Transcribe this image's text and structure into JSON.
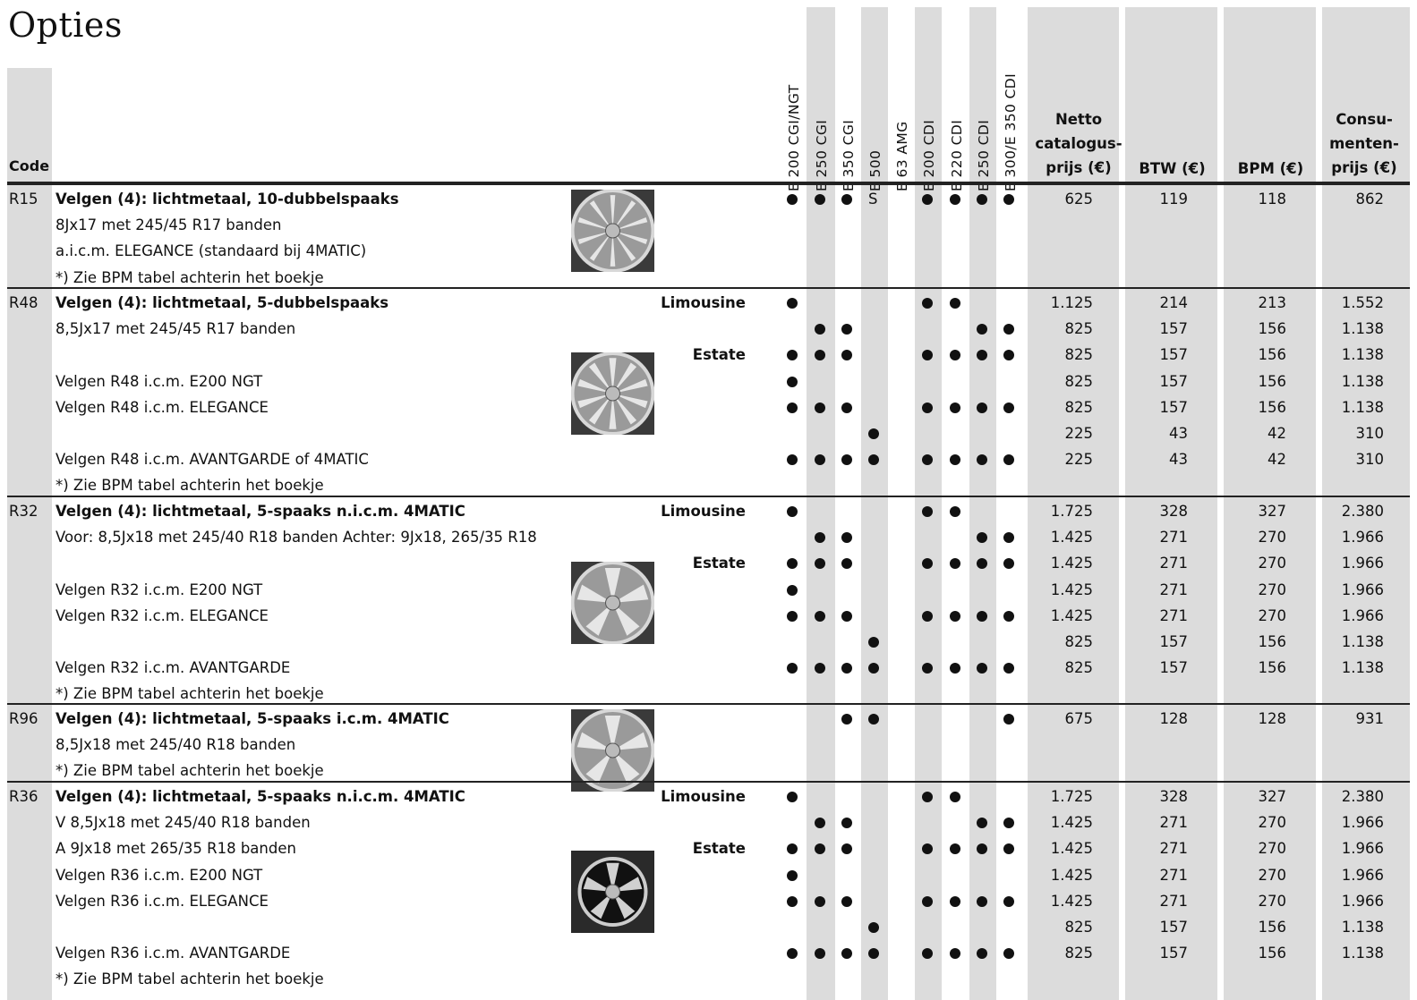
{
  "title": "Opties",
  "header": {
    "code": "Code",
    "models": [
      "E 200 CGI/NGT",
      "E 250 CGI",
      "E 350 CGI",
      "E 500",
      "E 63 AMG",
      "E 200 CDI",
      "E 220 CDI",
      "E 250 CDI",
      "E 300/E 350 CDI"
    ],
    "netto": [
      "Netto",
      "catalogus-",
      "prijs (€)"
    ],
    "btw": "BTW (€)",
    "bpm": "BPM (€)",
    "consumenten": [
      "Consu-",
      "menten-",
      "prijs (€)"
    ]
  },
  "groups": [
    {
      "code": "R15",
      "wheel_style": "10-dubbel-spoke",
      "rows": [
        {
          "text": "Velgen (4): lichtmetaal, 10-dubbelspaaks",
          "bold": true,
          "variant": "",
          "marks": [
            "●",
            "●",
            "●",
            "S",
            "",
            "●",
            "●",
            "●",
            "●"
          ],
          "netto": "625",
          "btw": "119",
          "bpm": "118",
          "cons": "862"
        },
        {
          "text": "8Jx17 met 245/45 R17 banden",
          "bold": false,
          "variant": "",
          "marks": [],
          "netto": "",
          "btw": "",
          "bpm": "",
          "cons": ""
        },
        {
          "text": "a.i.c.m. ELEGANCE (standaard bij 4MATIC)",
          "bold": false,
          "variant": "",
          "marks": [],
          "netto": "",
          "btw": "",
          "bpm": "",
          "cons": ""
        },
        {
          "text": "*) Zie BPM tabel achterin het boekje",
          "bold": false,
          "variant": "",
          "marks": [],
          "netto": "",
          "btw": "",
          "bpm": "",
          "cons": ""
        }
      ]
    },
    {
      "code": "R48",
      "wheel_style": "5-dubbel-spoke",
      "rows": [
        {
          "text": "Velgen (4): lichtmetaal, 5-dubbelspaaks",
          "bold": true,
          "variant": "Limousine",
          "marks": [
            "●",
            "",
            "",
            "",
            "",
            "●",
            "●",
            "",
            ""
          ],
          "netto": "1.125",
          "btw": "214",
          "bpm": "213",
          "cons": "1.552"
        },
        {
          "text": "8,5Jx17 met 245/45 R17 banden",
          "bold": false,
          "variant": "",
          "marks": [
            "",
            "●",
            "●",
            "",
            "",
            "",
            "",
            "●",
            "●"
          ],
          "netto": "825",
          "btw": "157",
          "bpm": "156",
          "cons": "1.138"
        },
        {
          "text": "",
          "bold": false,
          "variant": "Estate",
          "marks": [
            "●",
            "●",
            "●",
            "",
            "",
            "●",
            "●",
            "●",
            "●"
          ],
          "netto": "825",
          "btw": "157",
          "bpm": "156",
          "cons": "1.138"
        },
        {
          "text": "Velgen R48 i.c.m. E200 NGT",
          "bold": false,
          "variant": "",
          "marks": [
            "●",
            "",
            "",
            "",
            "",
            "",
            "",
            "",
            ""
          ],
          "netto": "825",
          "btw": "157",
          "bpm": "156",
          "cons": "1.138"
        },
        {
          "text": "Velgen R48 i.c.m. ELEGANCE",
          "bold": false,
          "variant": "",
          "marks": [
            "●",
            "●",
            "●",
            "",
            "",
            "●",
            "●",
            "●",
            "●"
          ],
          "netto": "825",
          "btw": "157",
          "bpm": "156",
          "cons": "1.138"
        },
        {
          "text": "",
          "bold": false,
          "variant": "",
          "marks": [
            "",
            "",
            "",
            "●",
            "",
            "",
            "",
            "",
            ""
          ],
          "netto": "225",
          "btw": "43",
          "bpm": "42",
          "cons": "310"
        },
        {
          "text": "Velgen R48 i.c.m. AVANTGARDE of 4MATIC",
          "bold": false,
          "variant": "",
          "marks": [
            "●",
            "●",
            "●",
            "●",
            "",
            "●",
            "●",
            "●",
            "●"
          ],
          "netto": "225",
          "btw": "43",
          "bpm": "42",
          "cons": "310"
        },
        {
          "text": "*) Zie BPM tabel achterin het boekje",
          "bold": false,
          "variant": "",
          "marks": [],
          "netto": "",
          "btw": "",
          "bpm": "",
          "cons": ""
        }
      ]
    },
    {
      "code": "R32",
      "wheel_style": "5-spoke",
      "rows": [
        {
          "text": "Velgen (4): lichtmetaal, 5-spaaks n.i.c.m. 4MATIC",
          "bold": true,
          "variant": "Limousine",
          "marks": [
            "●",
            "",
            "",
            "",
            "",
            "●",
            "●",
            "",
            ""
          ],
          "netto": "1.725",
          "btw": "328",
          "bpm": "327",
          "cons": "2.380"
        },
        {
          "text": "Voor: 8,5Jx18 met 245/40 R18 banden   Achter: 9Jx18, 265/35 R18",
          "bold": false,
          "variant": "",
          "marks": [
            "",
            "●",
            "●",
            "",
            "",
            "",
            "",
            "●",
            "●"
          ],
          "netto": "1.425",
          "btw": "271",
          "bpm": "270",
          "cons": "1.966"
        },
        {
          "text": "",
          "bold": false,
          "variant": "Estate",
          "marks": [
            "●",
            "●",
            "●",
            "",
            "",
            "●",
            "●",
            "●",
            "●"
          ],
          "netto": "1.425",
          "btw": "271",
          "bpm": "270",
          "cons": "1.966"
        },
        {
          "text": "Velgen R32 i.c.m. E200 NGT",
          "bold": false,
          "variant": "",
          "marks": [
            "●",
            "",
            "",
            "",
            "",
            "",
            "",
            "",
            ""
          ],
          "netto": "1.425",
          "btw": "271",
          "bpm": "270",
          "cons": "1.966"
        },
        {
          "text": "Velgen R32 i.c.m. ELEGANCE",
          "bold": false,
          "variant": "",
          "marks": [
            "●",
            "●",
            "●",
            "",
            "",
            "●",
            "●",
            "●",
            "●"
          ],
          "netto": "1.425",
          "btw": "271",
          "bpm": "270",
          "cons": "1.966"
        },
        {
          "text": "",
          "bold": false,
          "variant": "",
          "marks": [
            "",
            "",
            "",
            "●",
            "",
            "",
            "",
            "",
            ""
          ],
          "netto": "825",
          "btw": "157",
          "bpm": "156",
          "cons": "1.138"
        },
        {
          "text": "Velgen R32 i.c.m. AVANTGARDE",
          "bold": false,
          "variant": "",
          "marks": [
            "●",
            "●",
            "●",
            "●",
            "",
            "●",
            "●",
            "●",
            "●"
          ],
          "netto": "825",
          "btw": "157",
          "bpm": "156",
          "cons": "1.138"
        },
        {
          "text": "*) Zie BPM tabel achterin het boekje",
          "bold": false,
          "variant": "",
          "marks": [],
          "netto": "",
          "btw": "",
          "bpm": "",
          "cons": ""
        }
      ]
    },
    {
      "code": "R96",
      "wheel_style": "5-spoke",
      "rows": [
        {
          "text": "Velgen (4): lichtmetaal, 5-spaaks i.c.m. 4MATIC",
          "bold": true,
          "variant": "",
          "marks": [
            "",
            "",
            "●",
            "●",
            "",
            "",
            "",
            "",
            "●"
          ],
          "netto": "675",
          "btw": "128",
          "bpm": "128",
          "cons": "931"
        },
        {
          "text": "8,5Jx18 met 245/40 R18 banden",
          "bold": false,
          "variant": "",
          "marks": [],
          "netto": "",
          "btw": "",
          "bpm": "",
          "cons": ""
        },
        {
          "text": "*) Zie BPM tabel achterin het boekje",
          "bold": false,
          "variant": "",
          "marks": [],
          "netto": "",
          "btw": "",
          "bpm": "",
          "cons": ""
        }
      ]
    },
    {
      "code": "R36",
      "wheel_style": "5-spoke-dark",
      "rows": [
        {
          "text": "Velgen (4): lichtmetaal, 5-spaaks n.i.c.m. 4MATIC",
          "bold": true,
          "variant": "Limousine",
          "marks": [
            "●",
            "",
            "",
            "",
            "",
            "●",
            "●",
            "",
            ""
          ],
          "netto": "1.725",
          "btw": "328",
          "bpm": "327",
          "cons": "2.380"
        },
        {
          "text": "V 8,5Jx18 met 245/40 R18 banden",
          "bold": false,
          "variant": "",
          "marks": [
            "",
            "●",
            "●",
            "",
            "",
            "",
            "",
            "●",
            "●"
          ],
          "netto": "1.425",
          "btw": "271",
          "bpm": "270",
          "cons": "1.966"
        },
        {
          "text": "A 9Jx18 met 265/35 R18 banden",
          "bold": false,
          "variant": "Estate",
          "marks": [
            "●",
            "●",
            "●",
            "",
            "",
            "●",
            "●",
            "●",
            "●"
          ],
          "netto": "1.425",
          "btw": "271",
          "bpm": "270",
          "cons": "1.966"
        },
        {
          "text": "Velgen R36 i.c.m. E200 NGT",
          "bold": false,
          "variant": "",
          "marks": [
            "●",
            "",
            "",
            "",
            "",
            "",
            "",
            "",
            ""
          ],
          "netto": "1.425",
          "btw": "271",
          "bpm": "270",
          "cons": "1.966"
        },
        {
          "text": "Velgen R36 i.c.m. ELEGANCE",
          "bold": false,
          "variant": "",
          "marks": [
            "●",
            "●",
            "●",
            "",
            "",
            "●",
            "●",
            "●",
            "●"
          ],
          "netto": "1.425",
          "btw": "271",
          "bpm": "270",
          "cons": "1.966"
        },
        {
          "text": "",
          "bold": false,
          "variant": "",
          "marks": [
            "",
            "",
            "",
            "●",
            "",
            "",
            "",
            "",
            ""
          ],
          "netto": "825",
          "btw": "157",
          "bpm": "156",
          "cons": "1.138"
        },
        {
          "text": "Velgen R36 i.c.m. AVANTGARDE",
          "bold": false,
          "variant": "",
          "marks": [
            "●",
            "●",
            "●",
            "●",
            "",
            "●",
            "●",
            "●",
            "●"
          ],
          "netto": "825",
          "btw": "157",
          "bpm": "156",
          "cons": "1.138"
        },
        {
          "text": "*) Zie BPM tabel achterin het boekje",
          "bold": false,
          "variant": "",
          "marks": [],
          "netto": "",
          "btw": "",
          "bpm": "",
          "cons": ""
        }
      ]
    }
  ]
}
